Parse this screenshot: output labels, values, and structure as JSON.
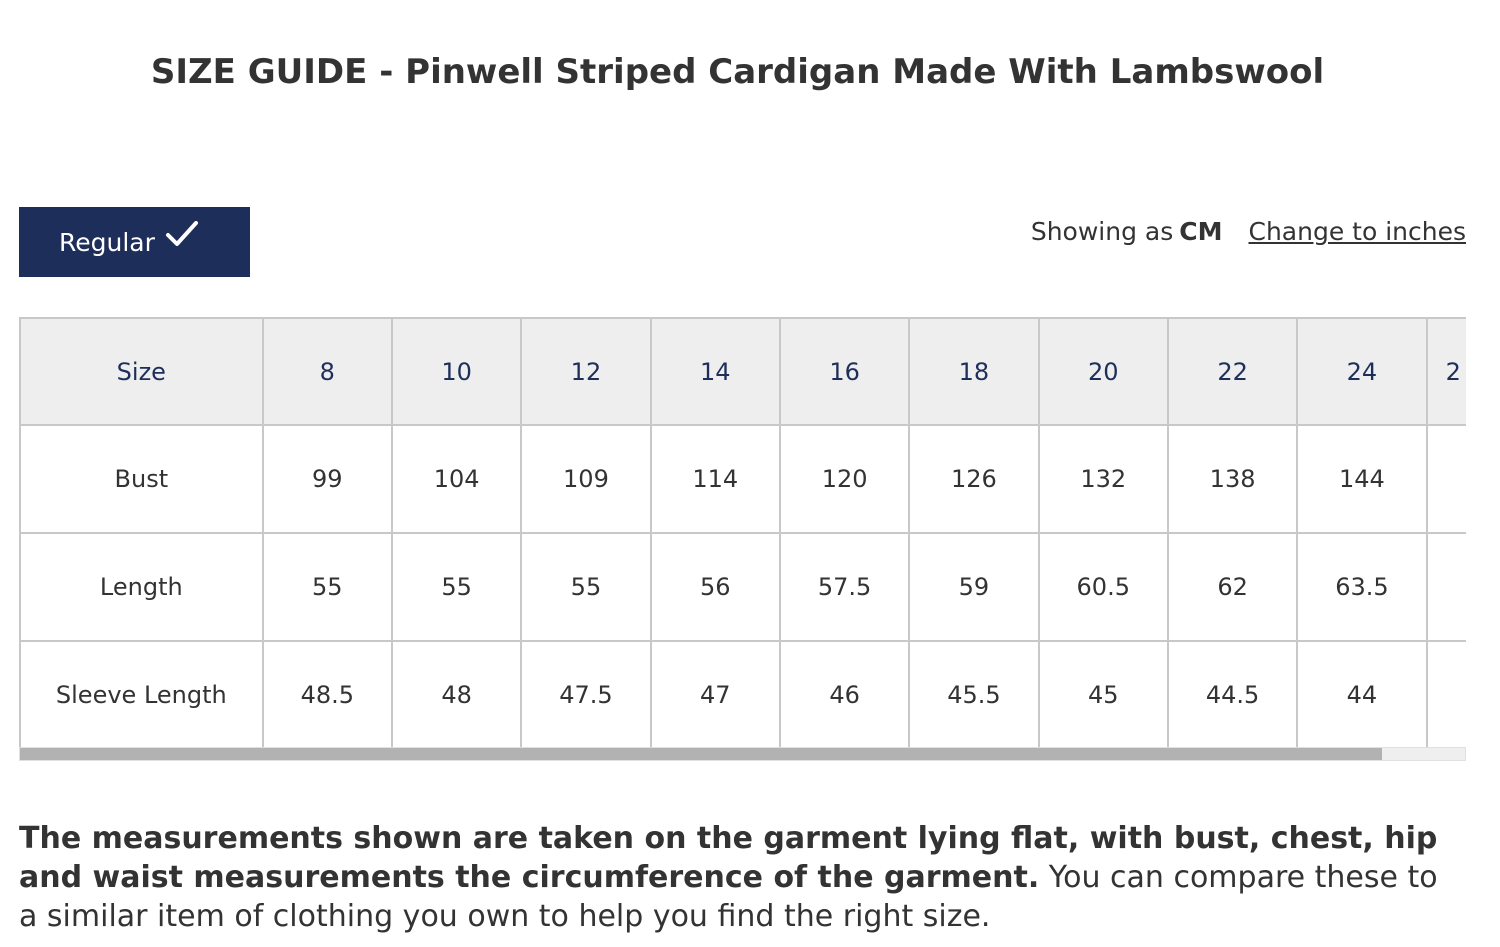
{
  "title": "SIZE GUIDE - Pinwell Striped Cardigan Made With Lambswool",
  "fit_tabs": [
    {
      "label": "Regular",
      "selected": true,
      "icon": "checkmark-icon"
    }
  ],
  "units": {
    "prefix": "Showing as",
    "current": "CM",
    "change_link": "Change to inches"
  },
  "table": {
    "header_label": "Size",
    "sizes": [
      "8",
      "10",
      "12",
      "14",
      "16",
      "18",
      "20",
      "22",
      "24",
      "2"
    ],
    "rows": [
      {
        "label": "Bust",
        "values": [
          "99",
          "104",
          "109",
          "114",
          "120",
          "126",
          "132",
          "138",
          "144",
          ""
        ]
      },
      {
        "label": "Length",
        "values": [
          "55",
          "55",
          "55",
          "56",
          "57.5",
          "59",
          "60.5",
          "62",
          "63.5",
          ""
        ]
      },
      {
        "label": "Sleeve Length",
        "values": [
          "48.5",
          "48",
          "47.5",
          "47",
          "46",
          "45.5",
          "45",
          "44.5",
          "44",
          ""
        ]
      }
    ]
  },
  "note": {
    "bold": "The measurements shown are taken on the garment lying flat, with bust, chest, hip and waist measurements the circumference of the garment.",
    "regular": " You can compare these to a similar item of clothing you own to help you find the right size."
  },
  "colors": {
    "navy": "#1e2e5a",
    "header_bg": "#eeeeee",
    "border": "#c8c8c8",
    "text": "#333333"
  }
}
